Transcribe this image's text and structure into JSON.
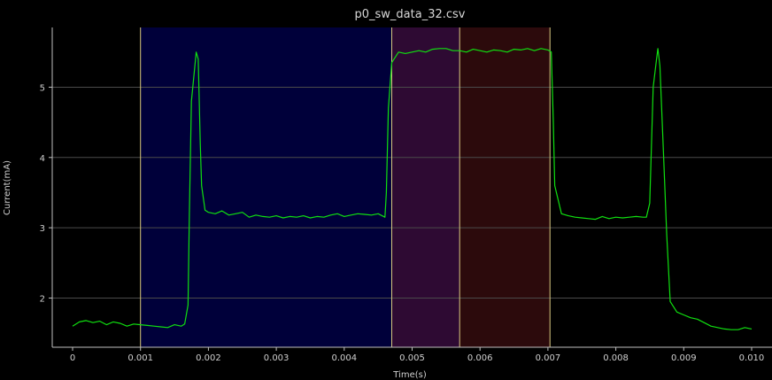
{
  "chart_data": {
    "type": "line",
    "title": "p0_sw_data_32.csv",
    "xlabel": "Time(s)",
    "ylabel": "Current(mA)",
    "xlim": [
      -0.0003,
      0.0103
    ],
    "ylim": [
      1.3,
      5.85
    ],
    "x_ticks": [
      "0",
      "0.001",
      "0.002",
      "0.003",
      "0.004",
      "0.005",
      "0.006",
      "0.007",
      "0.008",
      "0.009",
      "0.010"
    ],
    "x_tick_values": [
      0,
      0.001,
      0.002,
      0.003,
      0.004,
      0.005,
      0.006,
      0.007,
      0.008,
      0.009,
      0.01
    ],
    "y_ticks": [
      "2",
      "3",
      "4",
      "5"
    ],
    "y_tick_values": [
      2,
      3,
      4,
      5
    ],
    "grid_y": true,
    "grid_x": false,
    "regions": [
      {
        "name": "region-1",
        "x_start": 0.001,
        "x_end": 0.0047,
        "color": "#00003a"
      },
      {
        "name": "region-2",
        "x_start": 0.0047,
        "x_end": 0.0057,
        "color": "#2e0a33"
      },
      {
        "name": "region-3",
        "x_start": 0.0057,
        "x_end": 0.00703,
        "color": "#2c0a0c"
      }
    ],
    "markers": [
      {
        "x": 0.001,
        "color": "#d8c880"
      },
      {
        "x": 0.0047,
        "color": "#d8c880"
      },
      {
        "x": 0.0057,
        "color": "#d8c880"
      },
      {
        "x": 0.00703,
        "color": "#d8c880"
      }
    ],
    "series": [
      {
        "color": "#10e010",
        "x": [
          0,
          0.0001,
          0.0002,
          0.0003,
          0.0004,
          0.0005,
          0.0006,
          0.0007,
          0.0008,
          0.0009,
          0.001,
          0.0011,
          0.0012,
          0.0013,
          0.0014,
          0.0015,
          0.0016,
          0.00165,
          0.0017,
          0.00172,
          0.00175,
          0.0018,
          0.00182,
          0.00185,
          0.00188,
          0.0019,
          0.00195,
          0.002,
          0.0021,
          0.0022,
          0.0023,
          0.0024,
          0.0025,
          0.0026,
          0.0027,
          0.0028,
          0.0029,
          0.003,
          0.0031,
          0.0032,
          0.0033,
          0.0034,
          0.0035,
          0.0036,
          0.0037,
          0.0038,
          0.0039,
          0.004,
          0.0041,
          0.0042,
          0.0043,
          0.0044,
          0.0045,
          0.0046,
          0.00462,
          0.00465,
          0.0047,
          0.0048,
          0.0049,
          0.005,
          0.0051,
          0.0052,
          0.0053,
          0.0054,
          0.0055,
          0.0056,
          0.0057,
          0.0058,
          0.0059,
          0.006,
          0.0061,
          0.0062,
          0.0063,
          0.0064,
          0.0065,
          0.0066,
          0.0067,
          0.0068,
          0.0069,
          0.007,
          0.00705,
          0.00708,
          0.0071,
          0.00715,
          0.0072,
          0.0073,
          0.0074,
          0.0075,
          0.0076,
          0.0077,
          0.0078,
          0.0079,
          0.008,
          0.0081,
          0.0082,
          0.0083,
          0.0084,
          0.00845,
          0.0085,
          0.00855,
          0.0086,
          0.00862,
          0.00865,
          0.0087,
          0.00875,
          0.0088,
          0.0089,
          0.009,
          0.0091,
          0.0092,
          0.0093,
          0.0094,
          0.0095,
          0.0096,
          0.0097,
          0.0098,
          0.0099,
          0.01
        ],
        "y": [
          1.6,
          1.66,
          1.68,
          1.65,
          1.67,
          1.62,
          1.66,
          1.64,
          1.6,
          1.63,
          1.62,
          1.61,
          1.6,
          1.59,
          1.58,
          1.62,
          1.6,
          1.63,
          1.9,
          3.2,
          4.8,
          5.3,
          5.5,
          5.4,
          4.2,
          3.6,
          3.25,
          3.22,
          3.2,
          3.24,
          3.18,
          3.2,
          3.22,
          3.15,
          3.18,
          3.16,
          3.15,
          3.17,
          3.14,
          3.16,
          3.15,
          3.17,
          3.14,
          3.16,
          3.15,
          3.18,
          3.2,
          3.16,
          3.18,
          3.2,
          3.19,
          3.18,
          3.2,
          3.15,
          3.5,
          4.7,
          5.35,
          5.5,
          5.48,
          5.5,
          5.52,
          5.5,
          5.54,
          5.55,
          5.55,
          5.52,
          5.52,
          5.5,
          5.54,
          5.52,
          5.5,
          5.53,
          5.52,
          5.5,
          5.54,
          5.53,
          5.55,
          5.52,
          5.55,
          5.53,
          5.5,
          4.5,
          3.6,
          3.4,
          3.2,
          3.17,
          3.15,
          3.14,
          3.13,
          3.12,
          3.16,
          3.13,
          3.15,
          3.14,
          3.15,
          3.16,
          3.15,
          3.15,
          3.35,
          5.0,
          5.4,
          5.55,
          5.3,
          4.1,
          2.9,
          1.95,
          1.8,
          1.76,
          1.72,
          1.7,
          1.65,
          1.6,
          1.58,
          1.56,
          1.55,
          1.55,
          1.58,
          1.56
        ]
      }
    ]
  }
}
